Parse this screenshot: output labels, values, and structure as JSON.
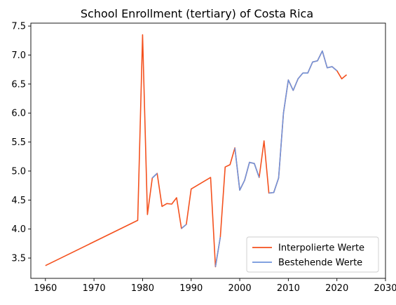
{
  "chart_data": {
    "type": "line",
    "title": "School Enrollment (tertiary) of Costa Rica",
    "xlabel": "",
    "ylabel": "",
    "xlim": [
      1957.0,
      2030.0
    ],
    "ylim": [
      3.15,
      7.55
    ],
    "xticks": [
      1960,
      1970,
      1980,
      1990,
      2000,
      2010,
      2020,
      2030
    ],
    "yticks": [
      3.5,
      4.0,
      4.5,
      5.0,
      5.5,
      6.0,
      6.5,
      7.0,
      7.5
    ],
    "grid": false,
    "legend": {
      "placement": "lower-right"
    },
    "series": [
      {
        "name": "Interpolierte Werte",
        "color": "#f4511e",
        "x": [
          1960,
          1979,
          1980,
          1981,
          1982,
          1983,
          1984,
          1985,
          1986,
          1987,
          1988,
          1989,
          1990,
          1994,
          1995,
          1996,
          1997,
          1998,
          1999,
          2000,
          2001,
          2002,
          2003,
          2004,
          2005,
          2006,
          2007,
          2008,
          2009,
          2010,
          2011,
          2012,
          2013,
          2014,
          2015,
          2016,
          2017,
          2018,
          2019,
          2020,
          2021,
          2022
        ],
        "y": [
          3.37,
          4.15,
          7.35,
          4.25,
          4.88,
          4.96,
          4.39,
          4.44,
          4.43,
          4.54,
          4.01,
          4.08,
          4.69,
          4.89,
          3.35,
          3.86,
          5.07,
          5.11,
          5.4,
          4.67,
          4.84,
          5.15,
          5.13,
          4.89,
          5.52,
          4.62,
          4.63,
          4.88,
          6.0,
          6.57,
          6.39,
          6.59,
          6.69,
          6.69,
          6.88,
          6.9,
          7.07,
          6.78,
          6.8,
          6.73,
          6.59,
          6.66
        ]
      },
      {
        "name": "Bestehende Werte",
        "color": "#7094dc",
        "x": [
          1982,
          1983,
          1988,
          1989,
          1995,
          1996,
          1999,
          2000,
          2001,
          2002,
          2003,
          2004,
          2006,
          2007,
          2008,
          2009,
          2010,
          2011,
          2012,
          2013,
          2014,
          2015,
          2016,
          2017,
          2018,
          2019,
          2020
        ],
        "y": [
          4.88,
          4.96,
          4.01,
          4.08,
          3.35,
          3.86,
          5.4,
          4.67,
          4.84,
          5.15,
          5.13,
          4.89,
          4.62,
          4.63,
          4.88,
          6.0,
          6.57,
          6.39,
          6.59,
          6.69,
          6.69,
          6.88,
          6.9,
          7.07,
          6.78,
          6.8,
          6.73
        ],
        "segments": [
          [
            0,
            1
          ],
          [
            2,
            3
          ],
          [
            4,
            5
          ],
          [
            6,
            11
          ],
          [
            12,
            26
          ]
        ]
      }
    ]
  }
}
